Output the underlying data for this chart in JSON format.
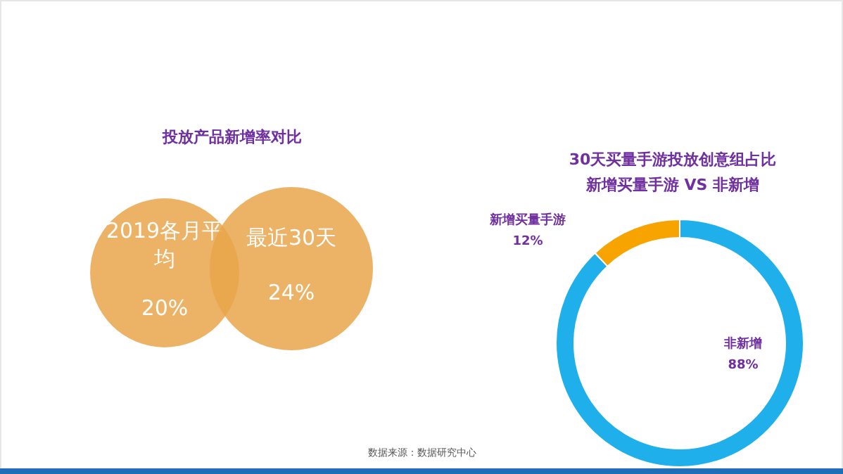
{
  "chart_data": [
    {
      "type": "other",
      "title": "投放产品新增率对比",
      "categories": [
        "2019各月平均",
        "最近30天"
      ],
      "values": [
        20,
        24
      ],
      "value_labels": [
        "20%",
        "24%"
      ],
      "colors": [
        "#e9a54a",
        "#e9a54a"
      ]
    },
    {
      "type": "donut",
      "title": "30天买量手游投放创意组占比",
      "subtitle": "新增买量手游 VS 非新增",
      "categories": [
        "非新增",
        "新增买量手游"
      ],
      "values": [
        88,
        12
      ],
      "colors": [
        "#1fb0ec",
        "#f7a400"
      ],
      "value_labels": [
        "88%",
        "12%"
      ],
      "annotations": [
        "数据来源：数据研究中心"
      ]
    }
  ]
}
